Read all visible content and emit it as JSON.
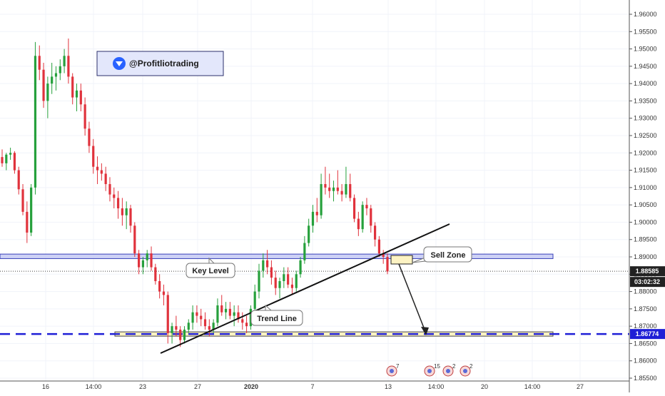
{
  "handle": "@Profitliotrading",
  "chart_data": {
    "type": "candlestick",
    "instrument_note": "",
    "ylim": [
      1.855,
      1.963
    ],
    "y_ticks": [
      "1.96000",
      "1.95500",
      "1.95000",
      "1.94500",
      "1.94000",
      "1.93500",
      "1.93000",
      "1.92500",
      "1.92000",
      "1.91500",
      "1.91000",
      "1.90500",
      "1.90000",
      "1.89500",
      "1.89000",
      "1.88500",
      "1.88000",
      "1.87500",
      "1.87000",
      "1.86500",
      "1.86000",
      "1.85500"
    ],
    "x_ticks": [
      "16",
      "14:00",
      "23",
      "27",
      "2020",
      "7",
      "13",
      "14:00",
      "20",
      "14:00",
      "27"
    ],
    "current_price": "1.88585",
    "countdown": "03:02:32",
    "level_price": "1.86774",
    "annotations": {
      "key_level": "Key Level",
      "trend_line": "Trend Line",
      "sell_zone": "Sell Zone"
    },
    "key_level_zone": [
      1.8895,
      1.8908
    ],
    "support_level": 1.86774,
    "candles": [
      [
        1.9188,
        1.921,
        1.916,
        1.917
      ],
      [
        1.917,
        1.92,
        1.915,
        1.9195
      ],
      [
        1.9195,
        1.9215,
        1.918,
        1.92
      ],
      [
        1.92,
        1.9205,
        1.914,
        1.915
      ],
      [
        1.915,
        1.916,
        1.908,
        1.9095
      ],
      [
        1.9095,
        1.911,
        1.902,
        1.903
      ],
      [
        1.903,
        1.906,
        1.894,
        1.897
      ],
      [
        1.897,
        1.911,
        1.896,
        1.91
      ],
      [
        1.91,
        1.952,
        1.908,
        1.948
      ],
      [
        1.948,
        1.951,
        1.941,
        1.944
      ],
      [
        1.944,
        1.946,
        1.933,
        1.935
      ],
      [
        1.935,
        1.942,
        1.93,
        1.94
      ],
      [
        1.94,
        1.946,
        1.937,
        1.942
      ],
      [
        1.942,
        1.945,
        1.938,
        1.943
      ],
      [
        1.943,
        1.947,
        1.941,
        1.945
      ],
      [
        1.945,
        1.95,
        1.943,
        1.948
      ],
      [
        1.948,
        1.953,
        1.94,
        1.942
      ],
      [
        1.942,
        1.943,
        1.934,
        1.936
      ],
      [
        1.936,
        1.94,
        1.932,
        1.938
      ],
      [
        1.938,
        1.94,
        1.932,
        1.934
      ],
      [
        1.934,
        1.936,
        1.925,
        1.927
      ],
      [
        1.927,
        1.929,
        1.92,
        1.922
      ],
      [
        1.922,
        1.924,
        1.914,
        1.916
      ],
      [
        1.916,
        1.919,
        1.911,
        1.915
      ],
      [
        1.915,
        1.917,
        1.912,
        1.914
      ],
      [
        1.914,
        1.916,
        1.909,
        1.911
      ],
      [
        1.911,
        1.913,
        1.906,
        1.908
      ],
      [
        1.908,
        1.91,
        1.904,
        1.907
      ],
      [
        1.907,
        1.909,
        1.901,
        1.904
      ],
      [
        1.904,
        1.907,
        1.899,
        1.902
      ],
      [
        1.902,
        1.906,
        1.898,
        1.904
      ],
      [
        1.904,
        1.905,
        1.897,
        1.899
      ],
      [
        1.899,
        1.9,
        1.89,
        1.891
      ],
      [
        1.891,
        1.892,
        1.885,
        1.887
      ],
      [
        1.887,
        1.89,
        1.885,
        1.889
      ],
      [
        1.889,
        1.892,
        1.887,
        1.891
      ],
      [
        1.891,
        1.893,
        1.886,
        1.887
      ],
      [
        1.887,
        1.888,
        1.882,
        1.883
      ],
      [
        1.883,
        1.885,
        1.878,
        1.88
      ],
      [
        1.88,
        1.882,
        1.876,
        1.879
      ],
      [
        1.879,
        1.88,
        1.865,
        1.868
      ],
      [
        1.868,
        1.871,
        1.865,
        1.87
      ],
      [
        1.87,
        1.873,
        1.867,
        1.869
      ],
      [
        1.869,
        1.87,
        1.864,
        1.866
      ],
      [
        1.866,
        1.87,
        1.865,
        1.869
      ],
      [
        1.869,
        1.872,
        1.868,
        1.871
      ],
      [
        1.871,
        1.876,
        1.869,
        1.874
      ],
      [
        1.874,
        1.876,
        1.871,
        1.873
      ],
      [
        1.873,
        1.875,
        1.87,
        1.872
      ],
      [
        1.872,
        1.874,
        1.869,
        1.87
      ],
      [
        1.87,
        1.872,
        1.867,
        1.869
      ],
      [
        1.869,
        1.872,
        1.868,
        1.871
      ],
      [
        1.871,
        1.878,
        1.87,
        1.876
      ],
      [
        1.876,
        1.879,
        1.873,
        1.874
      ],
      [
        1.874,
        1.877,
        1.872,
        1.875
      ],
      [
        1.875,
        1.877,
        1.872,
        1.873
      ],
      [
        1.873,
        1.876,
        1.87,
        1.874
      ],
      [
        1.874,
        1.876,
        1.871,
        1.872
      ],
      [
        1.872,
        1.874,
        1.869,
        1.871
      ],
      [
        1.871,
        1.873,
        1.868,
        1.87
      ],
      [
        1.87,
        1.876,
        1.869,
        1.875
      ],
      [
        1.875,
        1.882,
        1.874,
        1.88
      ],
      [
        1.88,
        1.888,
        1.878,
        1.886
      ],
      [
        1.886,
        1.891,
        1.884,
        1.889
      ],
      [
        1.889,
        1.892,
        1.885,
        1.887
      ],
      [
        1.887,
        1.889,
        1.882,
        1.884
      ],
      [
        1.884,
        1.886,
        1.879,
        1.881
      ],
      [
        1.881,
        1.884,
        1.878,
        1.883
      ],
      [
        1.883,
        1.887,
        1.881,
        1.885
      ],
      [
        1.885,
        1.887,
        1.881,
        1.882
      ],
      [
        1.882,
        1.884,
        1.879,
        1.881
      ],
      [
        1.881,
        1.886,
        1.88,
        1.885
      ],
      [
        1.885,
        1.89,
        1.884,
        1.889
      ],
      [
        1.889,
        1.896,
        1.888,
        1.894
      ],
      [
        1.894,
        1.901,
        1.893,
        1.899
      ],
      [
        1.899,
        1.905,
        1.897,
        1.903
      ],
      [
        1.903,
        1.907,
        1.9,
        1.902
      ],
      [
        1.902,
        1.914,
        1.901,
        1.911
      ],
      [
        1.911,
        1.916,
        1.908,
        1.91
      ],
      [
        1.91,
        1.914,
        1.907,
        1.909
      ],
      [
        1.909,
        1.912,
        1.906,
        1.91
      ],
      [
        1.91,
        1.915,
        1.908,
        1.909
      ],
      [
        1.909,
        1.911,
        1.906,
        1.908
      ],
      [
        1.908,
        1.916,
        1.907,
        1.911
      ],
      [
        1.911,
        1.914,
        1.906,
        1.907
      ],
      [
        1.907,
        1.908,
        1.9,
        1.901
      ],
      [
        1.901,
        1.903,
        1.896,
        1.898
      ],
      [
        1.898,
        1.906,
        1.897,
        1.905
      ],
      [
        1.905,
        1.907,
        1.902,
        1.904
      ],
      [
        1.904,
        1.905,
        1.897,
        1.899
      ],
      [
        1.899,
        1.9,
        1.893,
        1.895
      ],
      [
        1.895,
        1.896,
        1.89,
        1.891
      ],
      [
        1.891,
        1.892,
        1.888,
        1.89
      ],
      [
        1.89,
        1.891,
        1.885,
        1.8858
      ]
    ],
    "events": [
      {
        "label": "7"
      },
      {
        "label": "15"
      },
      {
        "label": "2"
      },
      {
        "label": "2"
      }
    ]
  }
}
